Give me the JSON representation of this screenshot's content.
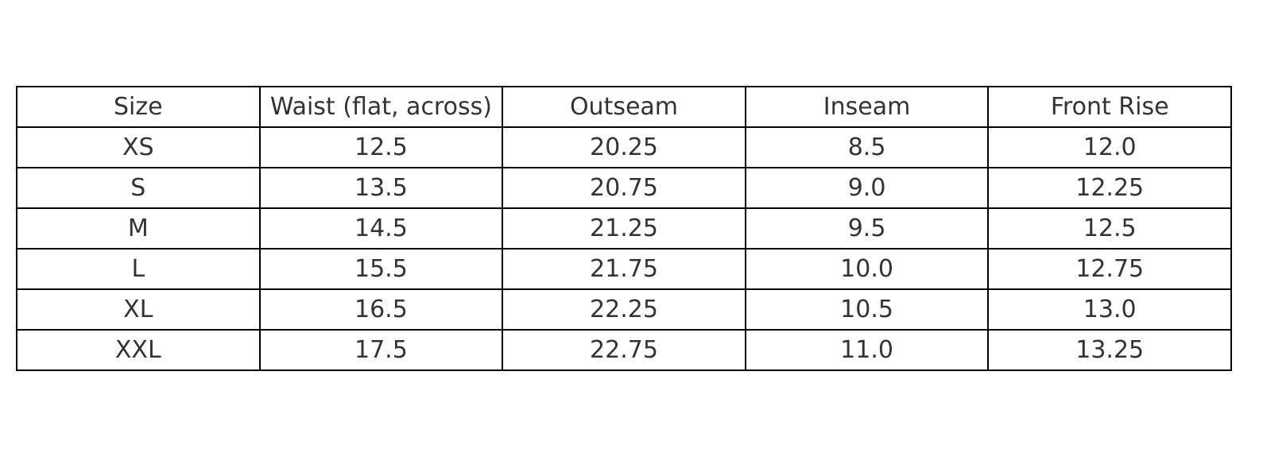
{
  "chart_data": {
    "type": "table",
    "columns": [
      "Size",
      "Waist (flat, across)",
      "Outseam",
      "Inseam",
      "Front Rise"
    ],
    "rows": [
      [
        "XS",
        "12.5",
        "20.25",
        "8.5",
        "12.0"
      ],
      [
        "S",
        "13.5",
        "20.75",
        "9.0",
        "12.25"
      ],
      [
        "M",
        "14.5",
        "21.25",
        "9.5",
        "12.5"
      ],
      [
        "L",
        "15.5",
        "21.75",
        "10.0",
        "12.75"
      ],
      [
        "XL",
        "16.5",
        "22.25",
        "10.5",
        "13.0"
      ],
      [
        "XXL",
        "17.5",
        "22.75",
        "11.0",
        "13.25"
      ]
    ],
    "text_color": "#333333",
    "border_color": "#000000"
  }
}
